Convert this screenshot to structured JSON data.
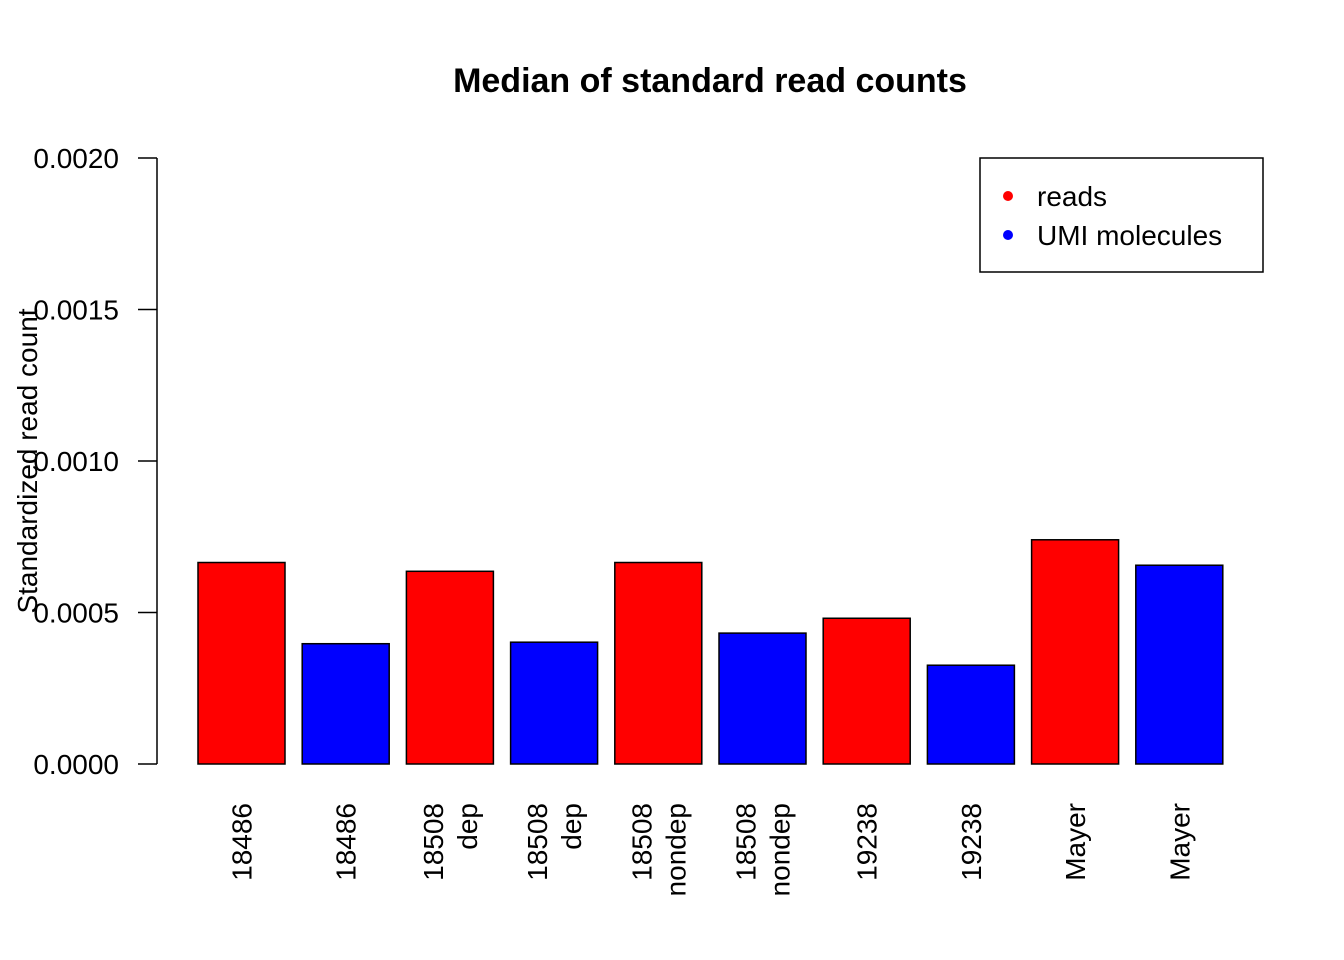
{
  "chart_data": {
    "type": "bar",
    "title": "Median of standard read counts",
    "xlabel": "",
    "ylabel": "Standardized read count",
    "ylim": [
      0,
      0.002
    ],
    "yticks": [
      "0.0000",
      "0.0005",
      "0.0010",
      "0.0015",
      "0.0020"
    ],
    "ytick_values": [
      0,
      0.0005,
      0.001,
      0.0015,
      0.002
    ],
    "categories": [
      [
        "18486"
      ],
      [
        "18486"
      ],
      [
        "18508",
        "dep"
      ],
      [
        "18508",
        "dep"
      ],
      [
        "18508",
        "nondep"
      ],
      [
        "18508",
        "nondep"
      ],
      [
        "19238"
      ],
      [
        "19238"
      ],
      [
        "Mayer"
      ],
      [
        "Mayer"
      ]
    ],
    "series_index": [
      0,
      1,
      0,
      1,
      0,
      1,
      0,
      1,
      0,
      1
    ],
    "values": [
      0.000665,
      0.000397,
      0.000636,
      0.000402,
      0.000665,
      0.000432,
      0.000481,
      0.000326,
      0.00074,
      0.000656
    ],
    "series": [
      {
        "name": "reads",
        "color": "#ff0000"
      },
      {
        "name": "UMI molecules",
        "color": "#0000ff"
      }
    ],
    "legend_position": "top-right",
    "grid": false
  }
}
